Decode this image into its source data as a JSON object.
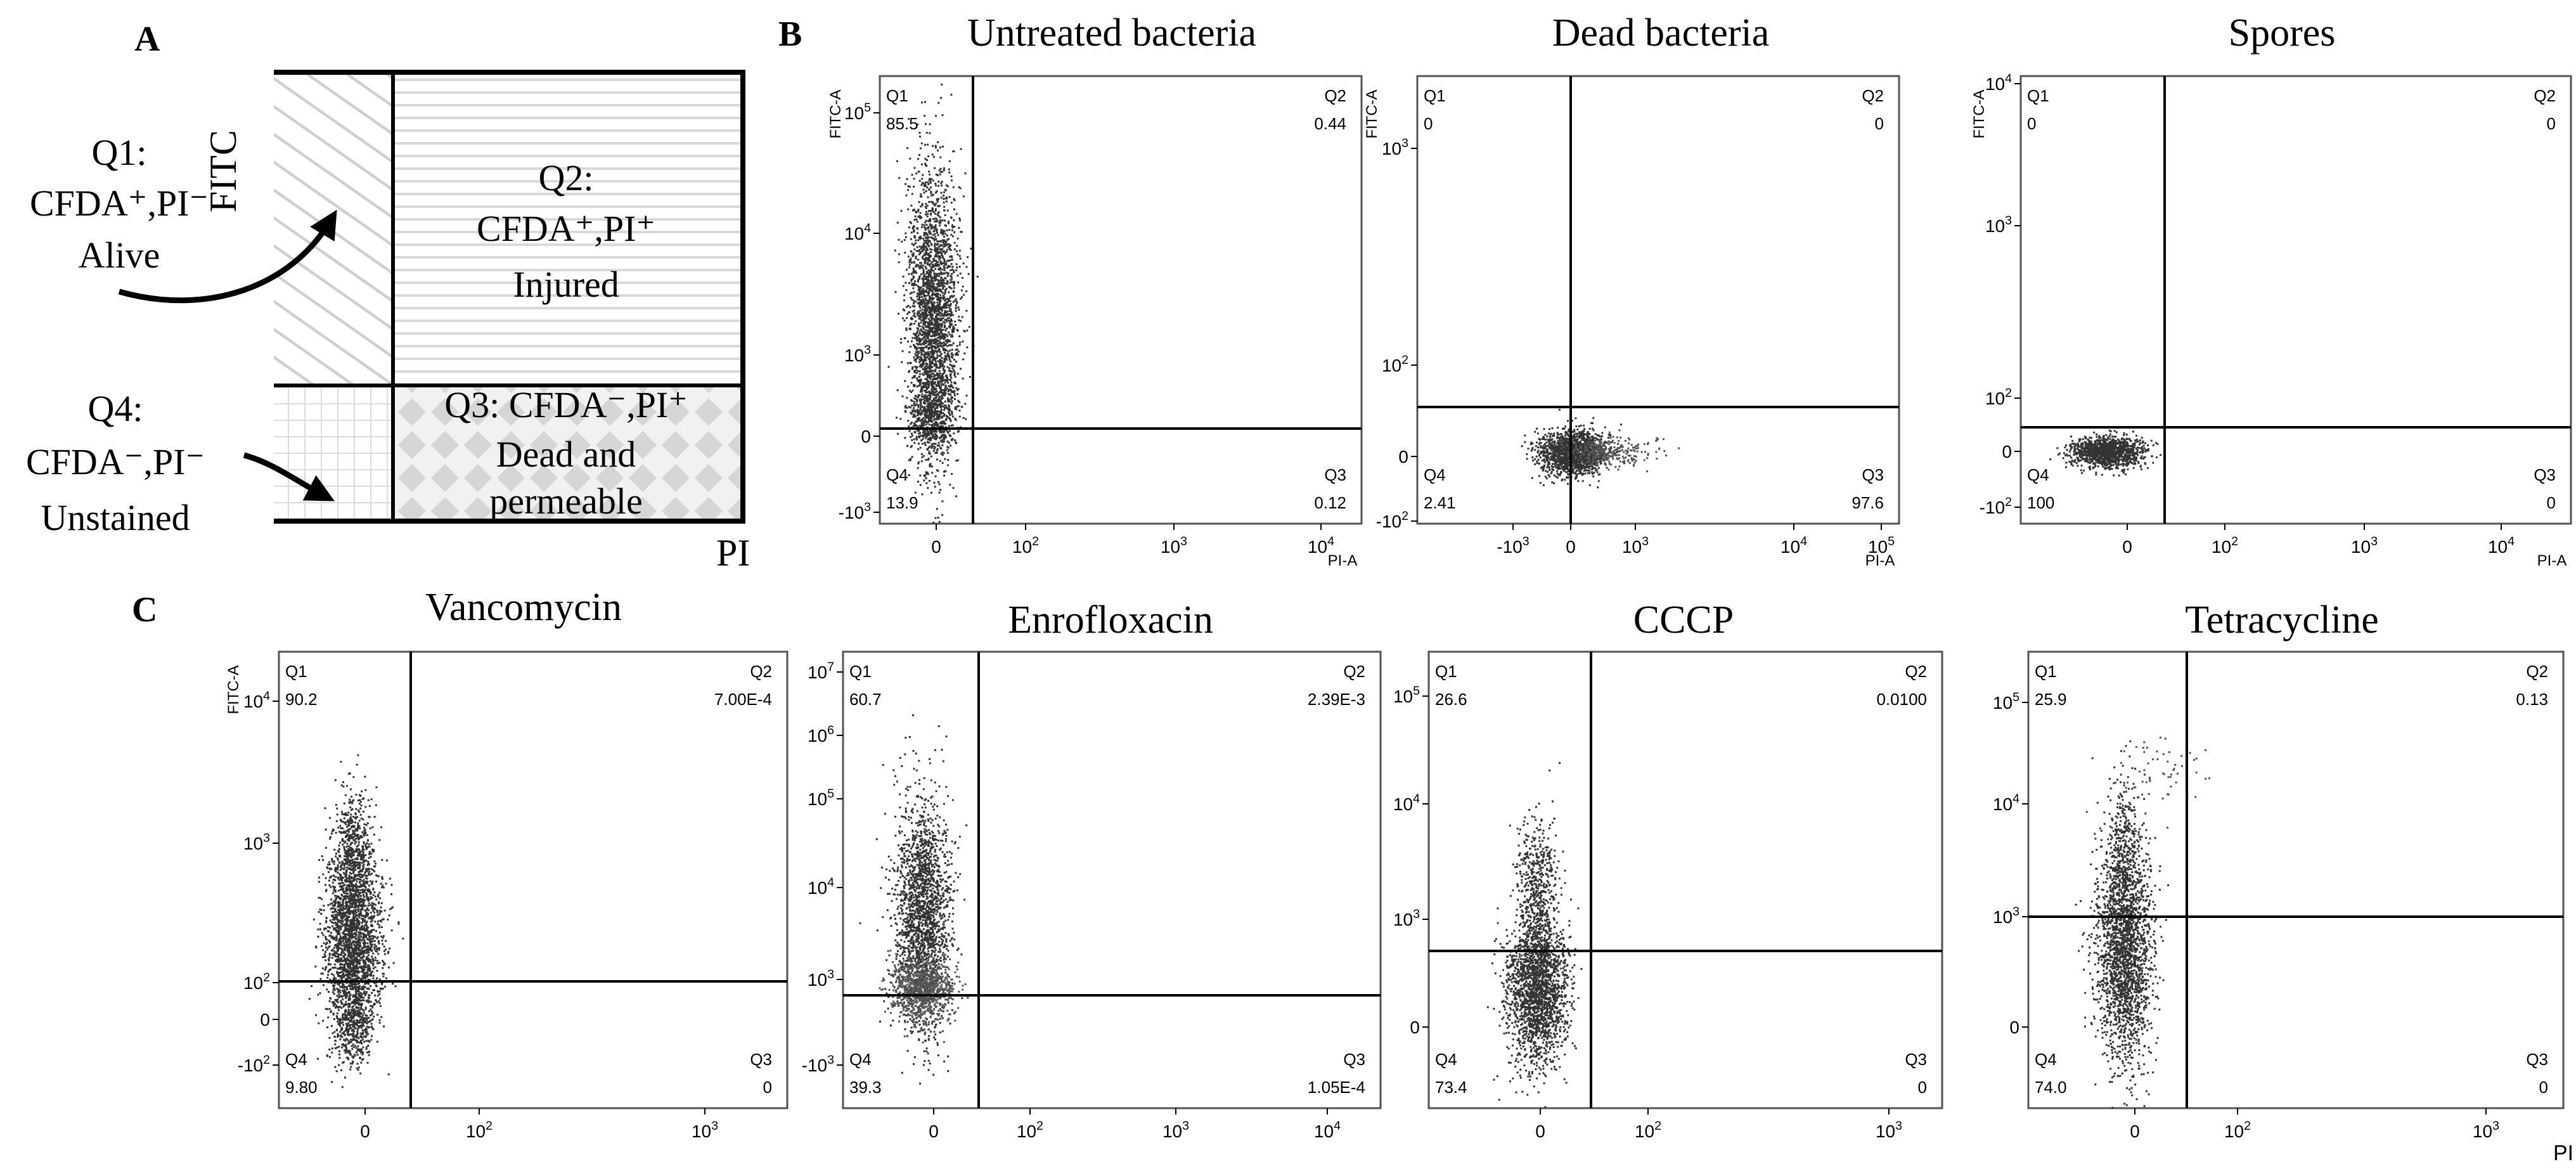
{
  "panel_letters": [
    "A",
    "B",
    "C"
  ],
  "schematic": {
    "y_axis_label": "FITC",
    "x_axis_label": "PI",
    "q1": {
      "lines": [
        "Q1:",
        "CFDA⁺,PI⁻",
        "Alive"
      ]
    },
    "q2": {
      "lines": [
        "Q2:",
        "CFDA⁺,PI⁺",
        "Injured"
      ]
    },
    "q3": {
      "lines": [
        "Q3: CFDA⁻,PI⁺",
        "Dead and",
        "permeable"
      ]
    },
    "q4": {
      "lines": [
        "Q4:",
        "CFDA⁻,PI⁻",
        "Unstained"
      ]
    }
  },
  "colors": {
    "axis": "#000000",
    "events_dark": "#333333",
    "events_mid": "#555555",
    "q1_fill": "#d6d6d6",
    "q2_fill": "#dedede",
    "q3_fill": "#d9d9d9"
  },
  "chart_data": [
    {
      "type": "scatter",
      "title": "Untreated bacteria",
      "xlabel": "PI-A",
      "ylabel": "FITC-A",
      "x_ticks": [
        "0",
        "10²",
        "10³",
        "10⁴"
      ],
      "y_ticks": [
        "-10³",
        "0",
        "10³",
        "10⁴",
        "10⁵"
      ],
      "quadrants": {
        "Q1": {
          "label": "Q1",
          "value": "85.5"
        },
        "Q2": {
          "label": "Q2",
          "value": "0.44"
        },
        "Q3": {
          "label": "Q3",
          "value": "0.12"
        },
        "Q4": {
          "label": "Q4",
          "value": "13.9"
        }
      }
    },
    {
      "type": "scatter",
      "title": "Dead bacteria",
      "xlabel": "PI-A",
      "ylabel": "FITC-A",
      "x_ticks": [
        "-10³",
        "0",
        "10³",
        "10⁴",
        "10⁵"
      ],
      "y_ticks": [
        "-10²",
        "0",
        "10²",
        "10³"
      ],
      "quadrants": {
        "Q1": {
          "label": "Q1",
          "value": "0"
        },
        "Q2": {
          "label": "Q2",
          "value": "0"
        },
        "Q3": {
          "label": "Q3",
          "value": "97.6"
        },
        "Q4": {
          "label": "Q4",
          "value": "2.41"
        }
      }
    },
    {
      "type": "scatter",
      "title": "Spores",
      "xlabel": "PI-A",
      "ylabel": "FITC-A",
      "x_ticks": [
        "0",
        "10²",
        "10³",
        "10⁴"
      ],
      "y_ticks": [
        "-10²",
        "0",
        "10²",
        "10³",
        "10⁴"
      ],
      "quadrants": {
        "Q1": {
          "label": "Q1",
          "value": "0"
        },
        "Q2": {
          "label": "Q2",
          "value": "0"
        },
        "Q3": {
          "label": "Q3",
          "value": "0"
        },
        "Q4": {
          "label": "Q4",
          "value": "100"
        }
      }
    },
    {
      "type": "scatter",
      "title": "Vancomycin",
      "xlabel": "",
      "ylabel": "FITC-A",
      "x_ticks": [
        "0",
        "10²",
        "10³"
      ],
      "y_ticks": [
        "-10²",
        "0",
        "10²",
        "10³",
        "10⁴"
      ],
      "quadrants": {
        "Q1": {
          "label": "Q1",
          "value": "90.2"
        },
        "Q2": {
          "label": "Q2",
          "value": "7.00E-4"
        },
        "Q3": {
          "label": "Q3",
          "value": "0"
        },
        "Q4": {
          "label": "Q4",
          "value": "9.80"
        }
      }
    },
    {
      "type": "scatter",
      "title": "Enrofloxacin",
      "xlabel": "",
      "ylabel": "",
      "x_ticks": [
        "0",
        "10²",
        "10³",
        "10⁴"
      ],
      "y_ticks": [
        "-10³",
        "10³",
        "10⁴",
        "10⁵",
        "10⁶",
        "10⁷"
      ],
      "quadrants": {
        "Q1": {
          "label": "Q1",
          "value": "60.7"
        },
        "Q2": {
          "label": "Q2",
          "value": "2.39E-3"
        },
        "Q3": {
          "label": "Q3",
          "value": "1.05E-4"
        },
        "Q4": {
          "label": "Q4",
          "value": "39.3"
        }
      }
    },
    {
      "type": "scatter",
      "title": "CCCP",
      "xlabel": "",
      "ylabel": "",
      "x_ticks": [
        "0",
        "10²",
        "10³"
      ],
      "y_ticks": [
        "0",
        "10³",
        "10⁴",
        "10⁵"
      ],
      "quadrants": {
        "Q1": {
          "label": "Q1",
          "value": "26.6"
        },
        "Q2": {
          "label": "Q2",
          "value": "0.0100"
        },
        "Q3": {
          "label": "Q3",
          "value": "0"
        },
        "Q4": {
          "label": "Q4",
          "value": "73.4"
        }
      }
    },
    {
      "type": "scatter",
      "title": "Tetracycline",
      "xlabel": "PI",
      "ylabel": "",
      "x_ticks": [
        "0",
        "10²",
        "10³"
      ],
      "y_ticks": [
        "0",
        "10³",
        "10⁴",
        "10⁵"
      ],
      "quadrants": {
        "Q1": {
          "label": "Q1",
          "value": "25.9"
        },
        "Q2": {
          "label": "Q2",
          "value": "0.13"
        },
        "Q3": {
          "label": "Q3",
          "value": "0"
        },
        "Q4": {
          "label": "Q4",
          "value": "74.0"
        }
      }
    }
  ]
}
